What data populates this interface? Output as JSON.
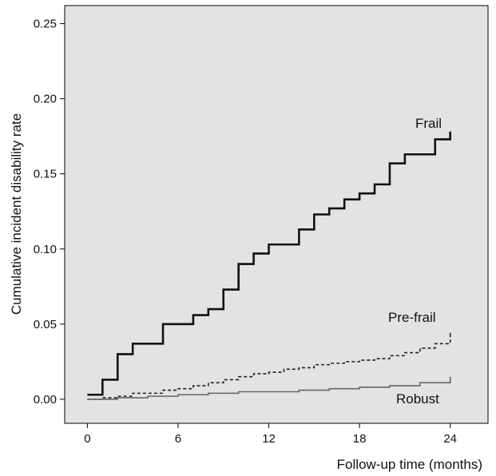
{
  "chart_data": {
    "type": "line",
    "step": true,
    "xlabel": "Follow-up time (months)",
    "ylabel": "Cumulative incident disability rate",
    "xlim": [
      -1.5,
      26.5
    ],
    "ylim": [
      -0.016,
      0.262
    ],
    "x_ticks": [
      0,
      6,
      12,
      18,
      24
    ],
    "x_tick_labels": [
      "0",
      "6",
      "12",
      "18",
      "24"
    ],
    "y_ticks": [
      0.0,
      0.05,
      0.1,
      0.15,
      0.2,
      0.25
    ],
    "y_tick_labels": [
      "0.00",
      "0.05",
      "0.10",
      "0.15",
      "0.20",
      "0.25"
    ],
    "grid": false,
    "background": "#e3e3e3",
    "series": [
      {
        "name": "Frail",
        "color": "#111111",
        "dash": "solid",
        "points": [
          [
            0,
            0.003
          ],
          [
            1,
            0.013
          ],
          [
            2,
            0.03
          ],
          [
            3,
            0.037
          ],
          [
            4,
            0.037
          ],
          [
            5,
            0.05
          ],
          [
            6,
            0.05
          ],
          [
            7,
            0.056
          ],
          [
            8,
            0.06
          ],
          [
            9,
            0.073
          ],
          [
            10,
            0.09
          ],
          [
            11,
            0.097
          ],
          [
            12,
            0.103
          ],
          [
            13,
            0.103
          ],
          [
            14,
            0.113
          ],
          [
            15,
            0.123
          ],
          [
            16,
            0.127
          ],
          [
            17,
            0.133
          ],
          [
            18,
            0.137
          ],
          [
            19,
            0.143
          ],
          [
            20,
            0.157
          ],
          [
            21,
            0.163
          ],
          [
            22,
            0.163
          ],
          [
            23,
            0.173
          ],
          [
            24,
            0.176
          ]
        ]
      },
      {
        "name": "Pre-frail",
        "color": "#222222",
        "dash": "dashed",
        "points": [
          [
            0,
            0.0
          ],
          [
            1,
            0.001
          ],
          [
            2,
            0.002
          ],
          [
            3,
            0.004
          ],
          [
            4,
            0.004
          ],
          [
            5,
            0.006
          ],
          [
            6,
            0.007
          ],
          [
            7,
            0.009
          ],
          [
            8,
            0.011
          ],
          [
            9,
            0.013
          ],
          [
            10,
            0.015
          ],
          [
            11,
            0.017
          ],
          [
            12,
            0.018
          ],
          [
            13,
            0.02
          ],
          [
            14,
            0.021
          ],
          [
            15,
            0.023
          ],
          [
            16,
            0.024
          ],
          [
            17,
            0.025
          ],
          [
            18,
            0.026
          ],
          [
            19,
            0.027
          ],
          [
            20,
            0.029
          ],
          [
            21,
            0.031
          ],
          [
            22,
            0.034
          ],
          [
            23,
            0.037
          ],
          [
            24,
            0.042
          ]
        ]
      },
      {
        "name": "Robust",
        "color": "#666666",
        "dash": "solid",
        "points": [
          [
            0,
            0.0
          ],
          [
            2,
            0.001
          ],
          [
            4,
            0.002
          ],
          [
            6,
            0.003
          ],
          [
            8,
            0.004
          ],
          [
            10,
            0.005
          ],
          [
            12,
            0.005
          ],
          [
            14,
            0.006
          ],
          [
            16,
            0.007
          ],
          [
            18,
            0.008
          ],
          [
            20,
            0.009
          ],
          [
            22,
            0.011
          ],
          [
            24,
            0.013
          ]
        ]
      }
    ]
  }
}
